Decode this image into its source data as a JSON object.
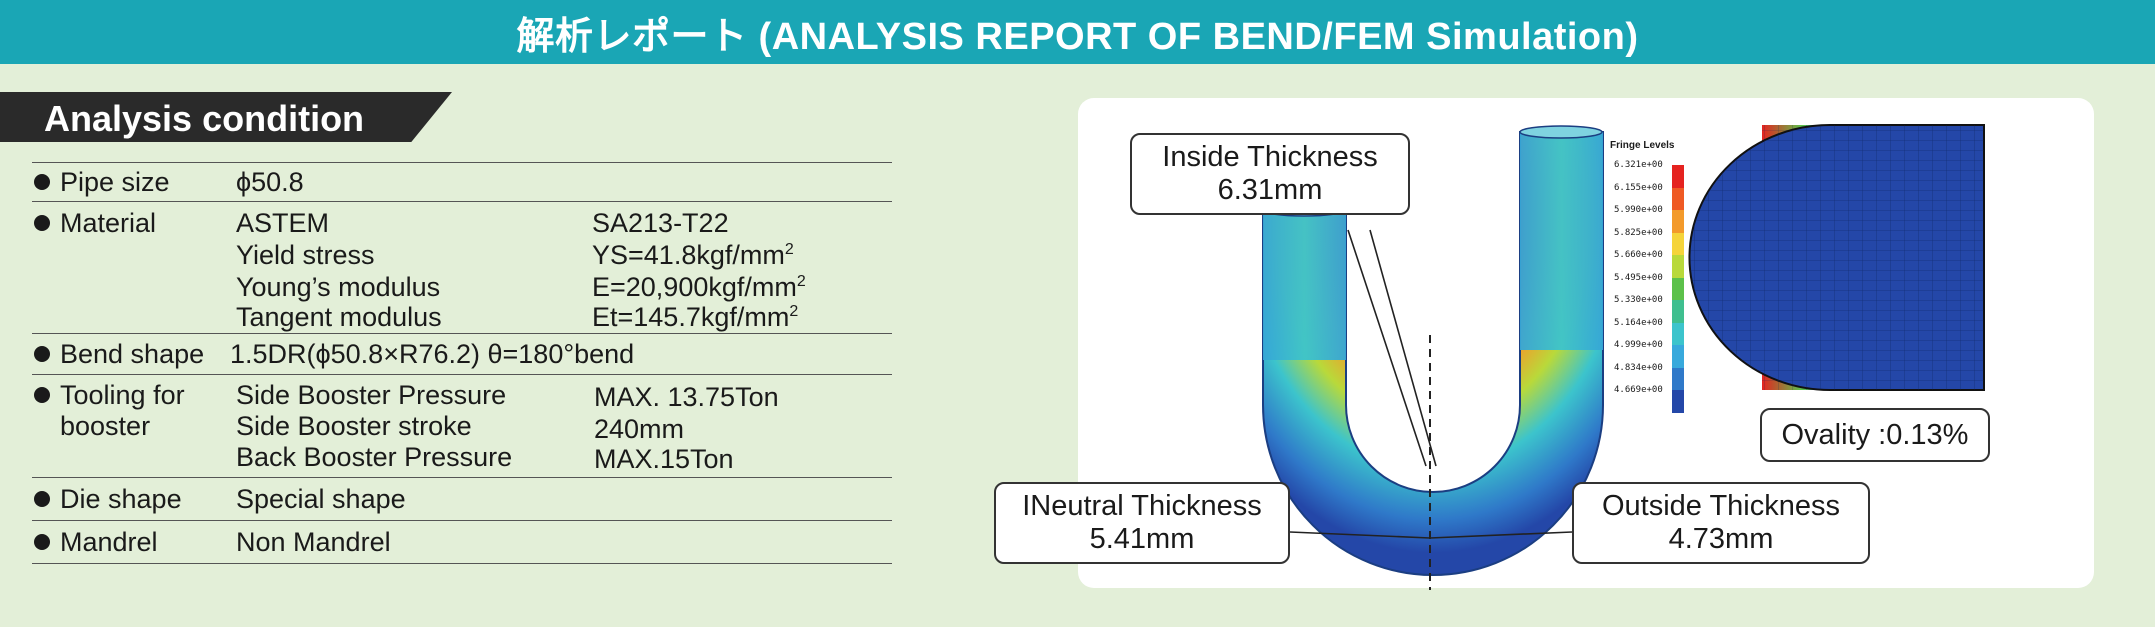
{
  "header": {
    "title": "解析レポート (ANALYSIS REPORT OF BEND/FEM Simulation)"
  },
  "section": {
    "title": "Analysis condition"
  },
  "conditions": {
    "pipe_size": {
      "label": "Pipe size",
      "value": "ϕ50.8"
    },
    "material": {
      "label": "Material",
      "rows": [
        {
          "name": "ASTEM",
          "value": "SA213-T22"
        },
        {
          "name": "Yield stress",
          "value": "YS=41.8kgf/mm",
          "sup": "2"
        },
        {
          "name": "Young’s modulus",
          "value": "E=20,900kgf/mm",
          "sup": "2"
        },
        {
          "name": "Tangent modulus",
          "value": "Et=145.7kgf/mm",
          "sup": "2"
        }
      ]
    },
    "bend_shape": {
      "label": "Bend shape",
      "value": "1.5DR(ϕ50.8×R76.2) θ=180°bend"
    },
    "tooling": {
      "label_line1": "Tooling for",
      "label_line2": "booster",
      "rows": [
        {
          "name": "Side Booster Pressure",
          "value": "MAX. 13.75Ton"
        },
        {
          "name": "Side Booster stroke",
          "value": "240mm"
        },
        {
          "name": "Back Booster Pressure",
          "value": "MAX.15Ton"
        }
      ]
    },
    "die_shape": {
      "label": "Die shape",
      "value": "Special shape"
    },
    "mandrel": {
      "label": "Mandrel",
      "value": "Non  Mandrel"
    }
  },
  "simulation": {
    "inside": {
      "title": "Inside Thickness",
      "value": "6.31mm"
    },
    "neutral": {
      "title": "INeutral Thickness",
      "value": "5.41mm"
    },
    "outside": {
      "title": "Outside Thickness",
      "value": "4.73mm"
    },
    "ovality": "Ovality :0.13%",
    "fringe": {
      "title": "Fringe Levels",
      "levels": [
        {
          "label": "6.321e+00",
          "color": "#e52320"
        },
        {
          "label": "6.155e+00",
          "color": "#ef5a24"
        },
        {
          "label": "5.990e+00",
          "color": "#f39a2b"
        },
        {
          "label": "5.825e+00",
          "color": "#f5d43a"
        },
        {
          "label": "5.660e+00",
          "color": "#b9d93a"
        },
        {
          "label": "5.495e+00",
          "color": "#5cc14a"
        },
        {
          "label": "5.330e+00",
          "color": "#3fbf8f"
        },
        {
          "label": "5.164e+00",
          "color": "#3cc4cc"
        },
        {
          "label": "4.999e+00",
          "color": "#38a9dc"
        },
        {
          "label": "4.834e+00",
          "color": "#2f79c9"
        },
        {
          "label": "4.669e+00",
          "color": "#2447a8"
        }
      ]
    }
  }
}
